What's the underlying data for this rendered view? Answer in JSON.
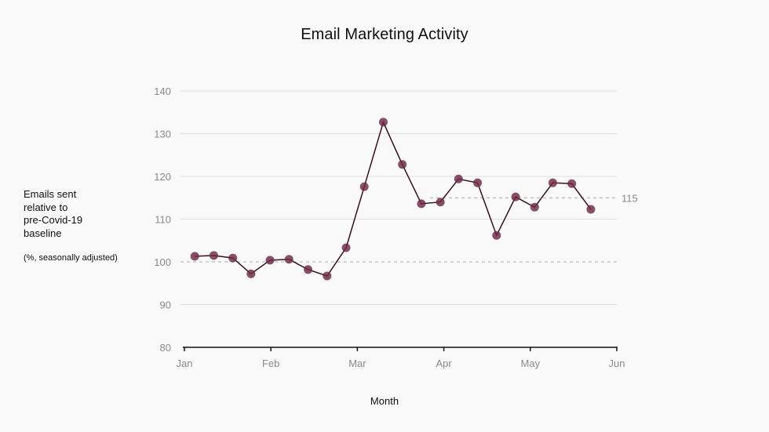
{
  "chart_data": {
    "type": "line",
    "title": "Email Marketing Activity",
    "xlabel": "Month",
    "ylabel": "Emails sent relative to pre-Covid-19 baseline",
    "ylabel_note": "(%, seasonally adjusted)",
    "ylim": [
      80,
      140
    ],
    "yticks": [
      80,
      90,
      100,
      110,
      120,
      130,
      140
    ],
    "xticks": [
      "Jan",
      "Feb",
      "Mar",
      "Apr",
      "May",
      "Jun"
    ],
    "grid": true,
    "legend": null,
    "reference_lines": [
      {
        "value": 100,
        "style": "dashed",
        "from": "Jan",
        "label": ""
      },
      {
        "value": 115,
        "style": "dashed",
        "from": "late Mar",
        "label": "115"
      }
    ],
    "series": [
      {
        "name": "Emails sent",
        "color": "#3a0f1f",
        "marker_color": "#6e2a45",
        "x_index": [
          0.12,
          0.34,
          0.56,
          0.77,
          0.99,
          1.21,
          1.43,
          1.65,
          1.87,
          2.08,
          2.3,
          2.52,
          2.74,
          2.96,
          3.17,
          3.39,
          3.61,
          3.83,
          4.05,
          4.26,
          4.48,
          4.7
        ],
        "values": [
          101.3,
          101.5,
          100.9,
          97.2,
          100.4,
          100.6,
          98.2,
          96.7,
          103.3,
          117.6,
          132.7,
          122.8,
          113.6,
          114.0,
          119.4,
          118.5,
          106.2,
          115.2,
          112.8,
          118.5,
          118.3,
          112.3
        ]
      }
    ]
  },
  "labels": {
    "title": "Email Marketing Activity",
    "ylabel_lines": [
      "Emails sent",
      "relative to",
      "pre-Covid-19",
      "baseline"
    ],
    "ylabel_note": "(%, seasonally adjusted)",
    "xlabel": "Month",
    "ref_115": "115"
  }
}
